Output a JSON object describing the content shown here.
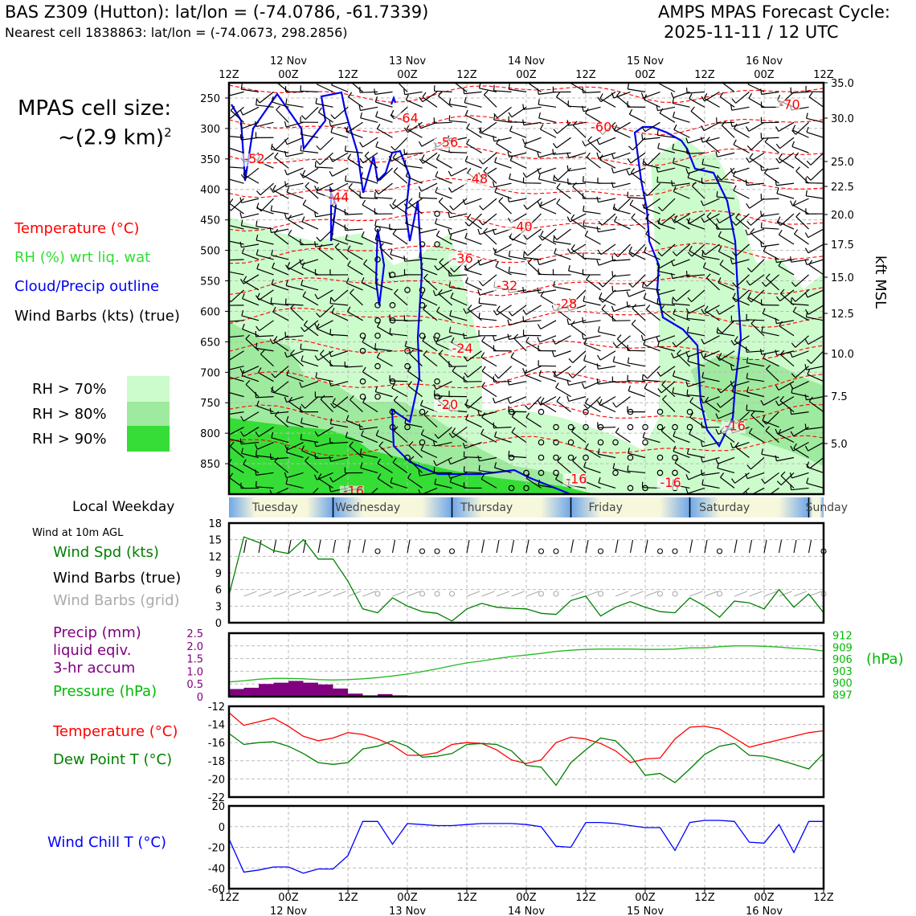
{
  "header": {
    "station": "BAS Z309 (Hutton): lat/lon = (-74.0786, -61.7339)",
    "nearest": "Nearest cell 1838863: lat/lon = (-74.0673, 298.2856)",
    "cycle_line1": "AMPS MPAS Forecast Cycle:",
    "cycle_line2": "2025-11-11 / 12 UTC"
  },
  "cell_size": {
    "line1": "MPAS cell size:",
    "line2": "~(2.9 km)",
    "sup": "2"
  },
  "legend": {
    "temperature": "Temperature (°C)",
    "rh": "RH (%) wrt liq. wat",
    "cloud": "Cloud/Precip outline",
    "barbs": "Wind Barbs (kts) (true)",
    "rh70": "RH > 70%",
    "rh80": "RH > 80%",
    "rh90": "RH > 90%"
  },
  "colors": {
    "rh70": "#ccfccc",
    "rh80": "#9eea9e",
    "rh90": "#36dd36",
    "temp": "#ff0000",
    "cloud": "#0000ee",
    "pressure": "#00bb00",
    "precip": "#800080",
    "windchill": "#0000ff",
    "dew": "#008000",
    "wind_grid": "#aaaaaa",
    "weekday_blue": "#6fa6e8",
    "weekday_cream": "#f7f7dc"
  },
  "weekday": {
    "label": "Local Weekday",
    "days": [
      "Tuesday",
      "Wednesday",
      "Thursday",
      "Friday",
      "Saturday",
      "Sunday"
    ]
  },
  "time_axis": {
    "hours": [
      "12Z",
      "00Z",
      "12Z",
      "00Z",
      "12Z",
      "00Z",
      "12Z",
      "00Z",
      "12Z",
      "00Z",
      "12Z"
    ],
    "dates": [
      "12 Nov",
      "13 Nov",
      "14 Nov",
      "15 Nov",
      "16 Nov"
    ]
  },
  "panel_labels": {
    "wind10": "Wind at 10m AGL",
    "wind_spd": "Wind Spd (kts)",
    "wind_barbs_true": "Wind Barbs (true)",
    "wind_barbs_grid": "Wind Barbs (grid)",
    "precip1": "Precip (mm)",
    "precip2": "liquid eqiv.",
    "precip3": "3-hr accum",
    "pressure": "Pressure (hPa)",
    "pressure_unit": "(hPa)",
    "temp": "Temperature (°C)",
    "dew": "Dew Point T (°C)",
    "windchill": "Wind Chill T (°C)",
    "kft": "kft MSL"
  },
  "chart_data": [
    {
      "type": "heatmap",
      "title": "",
      "y_pressure_ticks": [
        250,
        300,
        350,
        400,
        450,
        500,
        550,
        600,
        650,
        700,
        750,
        800,
        850
      ],
      "y_pressure_range": [
        225,
        900
      ],
      "y_kft_ticks": [
        "35.0",
        "30.0",
        "25.0",
        "22.5",
        "20.0",
        "17.5",
        "15.0",
        "12.5",
        "10.0",
        "7.5",
        "5.0"
      ],
      "x_hours": [
        0,
        120
      ],
      "temperature_labels": [
        {
          "text": "-64",
          "t": 34,
          "p": 290
        },
        {
          "text": "-60",
          "t": 73,
          "p": 305
        },
        {
          "text": "-70",
          "t": 111,
          "p": 268
        },
        {
          "text": "-52",
          "t": 3,
          "p": 357
        },
        {
          "text": "-56",
          "t": 42,
          "p": 330
        },
        {
          "text": "-48",
          "t": 48,
          "p": 390
        },
        {
          "text": "-44",
          "t": 20,
          "p": 420
        },
        {
          "text": "-40",
          "t": 57,
          "p": 468
        },
        {
          "text": "-36",
          "t": 45,
          "p": 520
        },
        {
          "text": "-32",
          "t": 54,
          "p": 565
        },
        {
          "text": "-28",
          "t": 66,
          "p": 595
        },
        {
          "text": "-24",
          "t": 45,
          "p": 668
        },
        {
          "text": "-20",
          "t": 42,
          "p": 760
        },
        {
          "text": "-16",
          "t": 100,
          "p": 795
        },
        {
          "text": "-16",
          "t": 68,
          "p": 882
        },
        {
          "text": "-16",
          "t": 87,
          "p": 888
        },
        {
          "text": "-16",
          "t": 23,
          "p": 902
        }
      ]
    },
    {
      "type": "line",
      "title": "",
      "x_hours_step": 3,
      "ylim": [
        0,
        18
      ],
      "y_ticks": [
        0,
        3,
        6,
        9,
        12,
        15,
        18
      ],
      "series": [
        {
          "name": "Wind Spd (kts)",
          "values": [
            5,
            15.5,
            14.5,
            13,
            12.5,
            15,
            11.5,
            11.5,
            7.5,
            2.5,
            1.8,
            4.5,
            3,
            2,
            1.7,
            0.3,
            2.5,
            3.5,
            2.8,
            2.6,
            2.5,
            1.7,
            1.5,
            4,
            4.8,
            1.2,
            2.8,
            3.8,
            2.8,
            2,
            1.8,
            4.5,
            3,
            1,
            3.9,
            3.6,
            2.5,
            6,
            2.8,
            5.2,
            1.8
          ]
        }
      ]
    },
    {
      "type": "bar",
      "title": "",
      "ylim": [
        0,
        2.5
      ],
      "y_ticks": [
        "0",
        "0.5",
        "1.0",
        "1.5",
        "2.0",
        "2.5"
      ],
      "series": [
        {
          "name": "Precip (mm)",
          "values": [
            0.3,
            0.35,
            0.5,
            0.55,
            0.62,
            0.55,
            0.48,
            0.32,
            0.12,
            0.05,
            0.1,
            0.05,
            0,
            0,
            0,
            0,
            0,
            0,
            0,
            0,
            0,
            0,
            0,
            0,
            0,
            0,
            0,
            0,
            0,
            0,
            0,
            0,
            0,
            0,
            0,
            0,
            0,
            0,
            0,
            0
          ]
        }
      ]
    },
    {
      "type": "line",
      "title": "",
      "ylim": [
        896.5,
        912.5
      ],
      "y_ticks": [
        897,
        900,
        903,
        906,
        909,
        912
      ],
      "series": [
        {
          "name": "Pressure (hPa)",
          "values": [
            900.2,
            900.5,
            900.9,
            901.1,
            901.1,
            901.0,
            900.8,
            900.7,
            900.8,
            901.0,
            901.3,
            901.7,
            902.2,
            902.8,
            903.5,
            904.3,
            905.0,
            905.5,
            906.1,
            906.6,
            907.0,
            907.4,
            907.9,
            908.2,
            908.4,
            908.5,
            908.5,
            908.5,
            908.4,
            908.4,
            908.5,
            908.8,
            908.8,
            909.1,
            909.3,
            909.3,
            909.2,
            909.0,
            908.7,
            908.5,
            908.0
          ]
        }
      ]
    },
    {
      "type": "line",
      "title": "",
      "ylim": [
        -22,
        -12
      ],
      "y_ticks": [
        -22,
        -20,
        -18,
        -16,
        -14,
        -12
      ],
      "series": [
        {
          "name": "Temperature (°C)",
          "values": [
            -12.7,
            -14.1,
            -13.7,
            -13.3,
            -14.2,
            -15.3,
            -15.8,
            -15.5,
            -14.9,
            -15.1,
            -15.6,
            -16.3,
            -17.4,
            -17.4,
            -17.1,
            -16.2,
            -16.0,
            -16.1,
            -16.8,
            -17.9,
            -18.3,
            -17.9,
            -16.0,
            -15.4,
            -15.6,
            -16.1,
            -16.9,
            -18.2,
            -17.8,
            -17.7,
            -15.6,
            -14.3,
            -14.2,
            -14.5,
            -15.5,
            -16.5,
            -16.1,
            -15.7,
            -15.3,
            -14.9,
            -14.7
          ]
        },
        {
          "name": "Dew Point T (°C)",
          "values": [
            -15.0,
            -16.2,
            -16.0,
            -15.9,
            -16.4,
            -17.2,
            -18.2,
            -18.4,
            -18.2,
            -16.7,
            -16.4,
            -15.8,
            -16.4,
            -17.6,
            -17.5,
            -17.2,
            -16.2,
            -16.1,
            -16.2,
            -16.9,
            -18.5,
            -18.7,
            -20.7,
            -18.2,
            -16.8,
            -15.5,
            -15.8,
            -17.4,
            -19.6,
            -19.4,
            -20.4,
            -18.9,
            -17.3,
            -16.4,
            -16.1,
            -17.4,
            -17.5,
            -17.9,
            -18.4,
            -18.9,
            -17.2
          ]
        }
      ]
    },
    {
      "type": "line",
      "title": "",
      "ylim": [
        -60,
        20
      ],
      "y_ticks": [
        -60,
        -40,
        -20,
        0,
        20
      ],
      "series": [
        {
          "name": "Wind Chill T (°C)",
          "values": [
            -12,
            -44,
            -42,
            -39,
            -39,
            -45,
            -41,
            -41,
            -28,
            5,
            5,
            -17,
            3,
            2,
            1,
            1,
            2,
            3,
            3,
            3,
            2,
            0,
            -19,
            -20,
            4,
            4,
            3,
            1,
            -1,
            -1,
            -23,
            4,
            6,
            6,
            5,
            -15,
            -16,
            2,
            -25,
            5,
            5
          ]
        }
      ]
    }
  ]
}
